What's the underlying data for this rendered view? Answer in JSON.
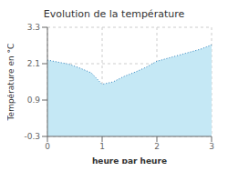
{
  "chart_data": {
    "type": "area",
    "title": "Evolution de la température",
    "x_label": "heure par heure",
    "y_label": "Température en °C",
    "x": [
      0,
      0.2,
      0.4,
      0.6,
      0.8,
      1.0,
      1.2,
      1.4,
      1.6,
      1.8,
      2.0,
      2.2,
      2.4,
      2.6,
      2.8,
      3.0
    ],
    "series": [
      {
        "values": [
          2.22,
          2.15,
          2.08,
          1.95,
          1.8,
          1.42,
          1.5,
          1.68,
          1.82,
          1.98,
          2.18,
          2.28,
          2.38,
          2.48,
          2.58,
          2.72
        ],
        "color": "#c5e8f5",
        "line_style": "dotted"
      }
    ],
    "xlim": [
      0,
      3
    ],
    "ylim": [
      -0.3,
      3.3
    ],
    "xticks": [
      0,
      1,
      2,
      3
    ],
    "yticks": [
      -0.3,
      0.9,
      2.1,
      3.3
    ],
    "grid": true
  }
}
